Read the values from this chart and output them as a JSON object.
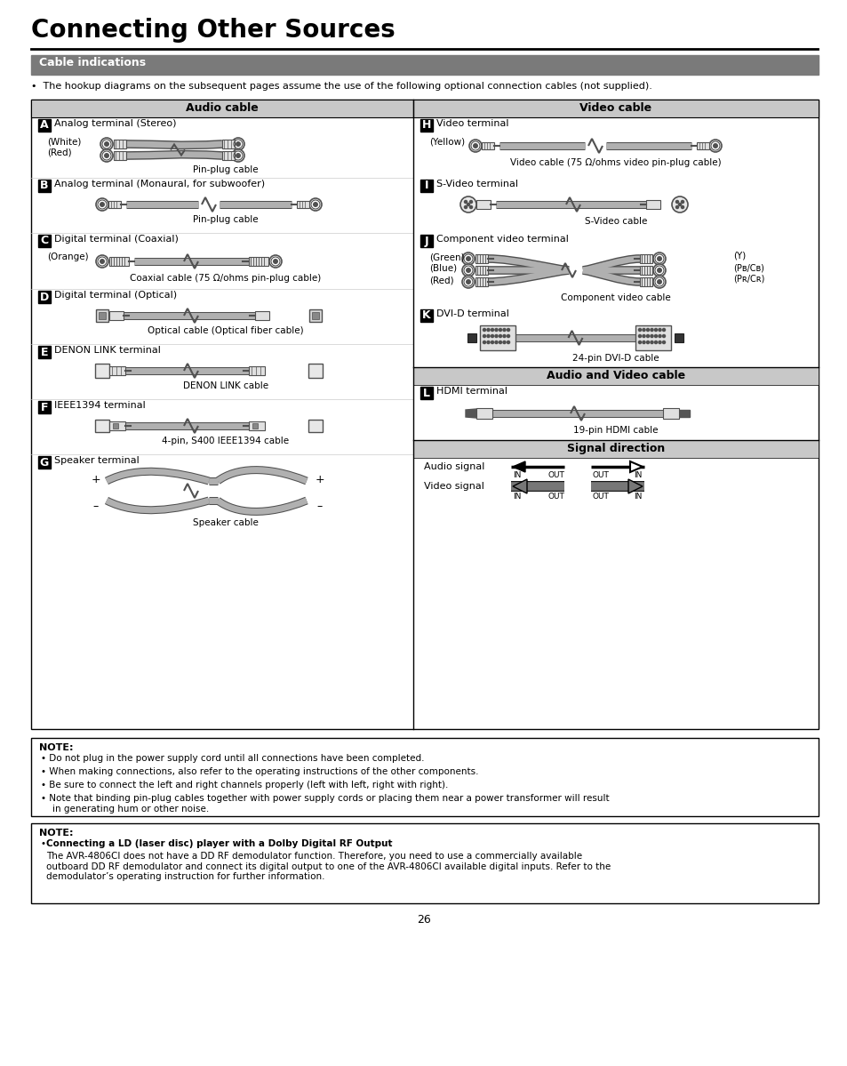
{
  "title": "Connecting Other Sources",
  "section_header": "Cable indications",
  "intro_text": "•  The hookup diagrams on the subsequent pages assume the use of the following optional connection cables (not supplied).",
  "left_header": "Audio cable",
  "right_header": "Video cable",
  "av_header": "Audio and Video cable",
  "signal_header": "Signal direction",
  "page_number": "26",
  "note1_title": "NOTE:",
  "note1_bullets": [
    "Do not plug in the power supply cord until all connections have been completed.",
    "When making connections, also refer to the operating instructions of the other components.",
    "Be sure to connect the left and right channels properly (left with left, right with right).",
    "Note that binding pin-plug cables together with power supply cords or placing them near a power transformer will result\n    in generating hum or other noise."
  ],
  "note2_title": "NOTE:",
  "note2_bullet_bold": "Connecting a LD (laser disc) player with a Dolby Digital RF Output",
  "note2_text": "The AVR-4806CI does not have a DD RF demodulator function. Therefore, you need to use a commercially available\noutboard DD RF demodulator and connect its digital output to one of the AVR-4806CI available digital inputs. Refer to the\ndemodulator’s operating instruction for further information.",
  "bg_color": "#ffffff",
  "header_bg": "#7a7a7a",
  "header_fg": "#ffffff",
  "subheader_bg": "#c8c8c8",
  "table_border": "#000000",
  "cable_color": "#b0b0b0",
  "cable_dark": "#505050",
  "cable_light": "#e0e0e0"
}
